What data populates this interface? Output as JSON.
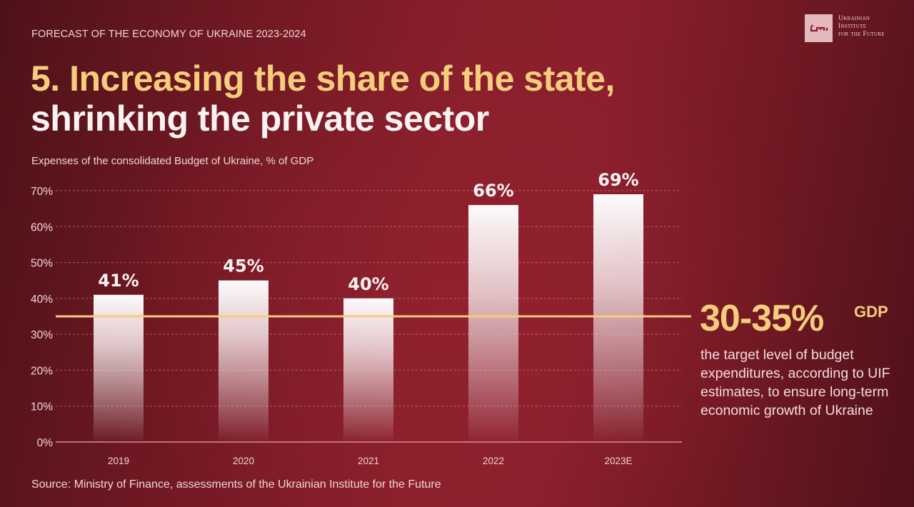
{
  "header": {
    "kicker": "FORECAST OF THE ECONOMY OF UKRAINE 2023-2024",
    "title_line1": "5. Increasing the share of the state,",
    "title_line2": "shrinking the private sector"
  },
  "logo": {
    "icon": "uif-key-icon",
    "line1": "Ukrainian",
    "line2": "Institute",
    "line3": "for the Future"
  },
  "colors": {
    "accent_yellow": "#f6cd7c",
    "bar_top": "#ffffff",
    "background": "#8a1f2c"
  },
  "chart_data": {
    "type": "bar",
    "title": "Expenses of the consolidated Budget of Ukraine, % of GDP",
    "categories": [
      "2019",
      "2020",
      "2021",
      "2022",
      "2023E"
    ],
    "values": [
      41,
      45,
      40,
      66,
      69
    ],
    "value_labels": [
      "41%",
      "45%",
      "40%",
      "66%",
      "69%"
    ],
    "xlabel": "",
    "ylabel": "",
    "ylim": [
      0,
      70
    ],
    "yticks": [
      0,
      10,
      20,
      30,
      40,
      50,
      60,
      70
    ],
    "ytick_labels": [
      "0%",
      "10%",
      "20%",
      "30%",
      "40%",
      "50%",
      "60%",
      "70%"
    ],
    "grid": true,
    "reference_line": {
      "value": 35,
      "label": "30-35%"
    },
    "legend": "none"
  },
  "annotation": {
    "value": "30-35%",
    "unit": "GDP",
    "description": "the target level of budget expenditures, according to UIF estimates, to ensure long-term economic growth of Ukraine"
  },
  "footer": {
    "source": "Source: Ministry of Finance, assessments of the Ukrainian Institute for the Future"
  }
}
